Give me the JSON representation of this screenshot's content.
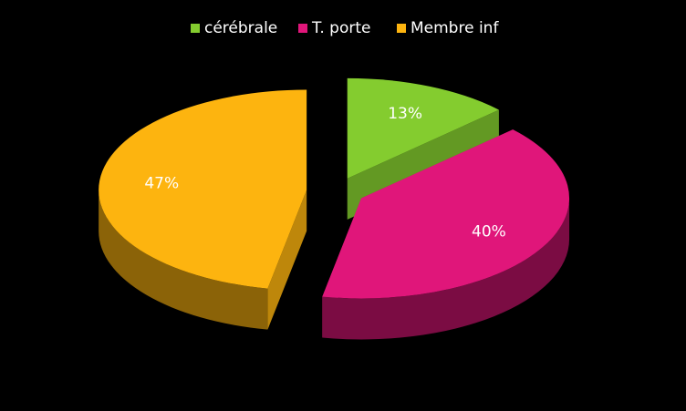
{
  "chart_data": {
    "type": "pie",
    "categories": [
      "cérébrale",
      "T. porte",
      "Membre inf"
    ],
    "values": [
      13,
      40,
      47
    ],
    "value_labels": [
      "13%",
      "40%",
      "47%"
    ],
    "colors": [
      "#84cc2f",
      "#e0167a",
      "#fdb40f"
    ],
    "legend": "top"
  }
}
